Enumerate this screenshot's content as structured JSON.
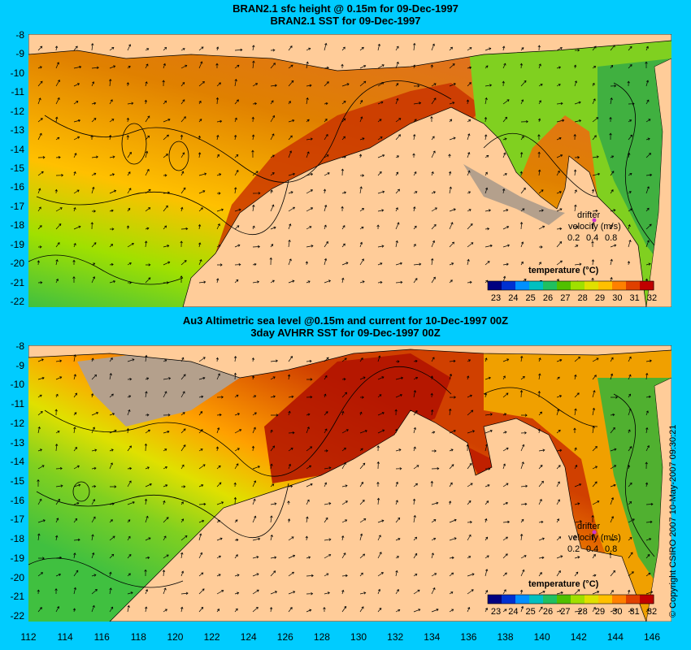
{
  "panels": [
    {
      "title_line1": "BRAN2.1 sfc height @ 0.15m for 09-Dec-1997",
      "title_line2": "BRAN2.1 SST for 09-Dec-1997",
      "legend_title": "temperature (°C)",
      "drifter_label": "drifter",
      "velocity_label": "velocity (m/s)",
      "velocity_scale": [
        "0.2",
        "0.4",
        "0.8"
      ]
    },
    {
      "title_line1": "Au3 Altimetric sea level  @0.15m and current for 10-Dec-1997 00Z",
      "title_line2": "3day AVHRR SST for 09-Dec-1997 00Z",
      "legend_title": "temperature (°C)",
      "drifter_label": "drifter",
      "velocity_label": "velocity (m/s)",
      "velocity_scale": [
        "0.2",
        "0.4",
        "0.8"
      ]
    }
  ],
  "y_ticks": [
    "-8",
    "-9",
    "-10",
    "-11",
    "-12",
    "-13",
    "-14",
    "-15",
    "-16",
    "-17",
    "-18",
    "-19",
    "-20",
    "-21",
    "-22"
  ],
  "x_ticks": [
    "112",
    "114",
    "116",
    "118",
    "120",
    "122",
    "124",
    "126",
    "128",
    "130",
    "132",
    "134",
    "136",
    "138",
    "140",
    "142",
    "144",
    "146"
  ],
  "colorbar_ticks": [
    "23",
    "24",
    "25",
    "26",
    "27",
    "28",
    "29",
    "30",
    "31",
    "32"
  ],
  "colorbar_colors": [
    "#000080",
    "#0030d0",
    "#0090ff",
    "#00c0c0",
    "#20c060",
    "#50c000",
    "#a0e000",
    "#e0e000",
    "#ffc000",
    "#ff8000",
    "#e04000",
    "#c00000"
  ],
  "copyright": "© Copyright CSIRO 2007   10-May-2007 09:30:21",
  "colors": {
    "background": "#00ccff",
    "land": "#ffcc99",
    "nodata": "#b4a08c",
    "drifter_marker": "#cc33cc"
  }
}
